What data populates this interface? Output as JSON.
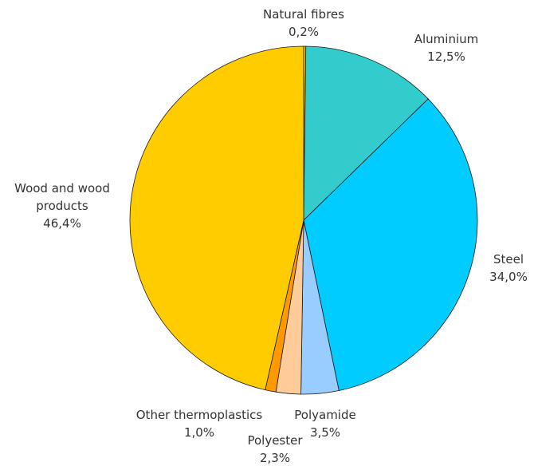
{
  "chart_data": {
    "type": "pie",
    "title": "",
    "start": "top",
    "direction": "clockwise",
    "slices": [
      {
        "name": "Natural fibres",
        "label_lines": [
          "Natural fibres"
        ],
        "value_label": "0,2%",
        "value": 0.2,
        "color": "#ffc000"
      },
      {
        "name": "Aluminium",
        "label_lines": [
          "Aluminium"
        ],
        "value_label": "12,5%",
        "value": 12.5,
        "color": "#33cccc"
      },
      {
        "name": "Steel",
        "label_lines": [
          "Steel"
        ],
        "value_label": "34,0%",
        "value": 34.0,
        "color": "#00ccff"
      },
      {
        "name": "Polyamide",
        "label_lines": [
          "Polyamide"
        ],
        "value_label": "3,5%",
        "value": 3.5,
        "color": "#99ccff"
      },
      {
        "name": "Polyester",
        "label_lines": [
          "Polyester"
        ],
        "value_label": "2,3%",
        "value": 2.3,
        "color": "#ffcc99"
      },
      {
        "name": "Other thermoplastics",
        "label_lines": [
          "Other thermoplastics"
        ],
        "value_label": "1,0%",
        "value": 1.0,
        "color": "#ff9900"
      },
      {
        "name": "Wood and wood products",
        "label_lines": [
          "Wood and wood",
          "products"
        ],
        "value_label": "46,4%",
        "value": 46.4,
        "color": "#ffcc00"
      }
    ]
  }
}
